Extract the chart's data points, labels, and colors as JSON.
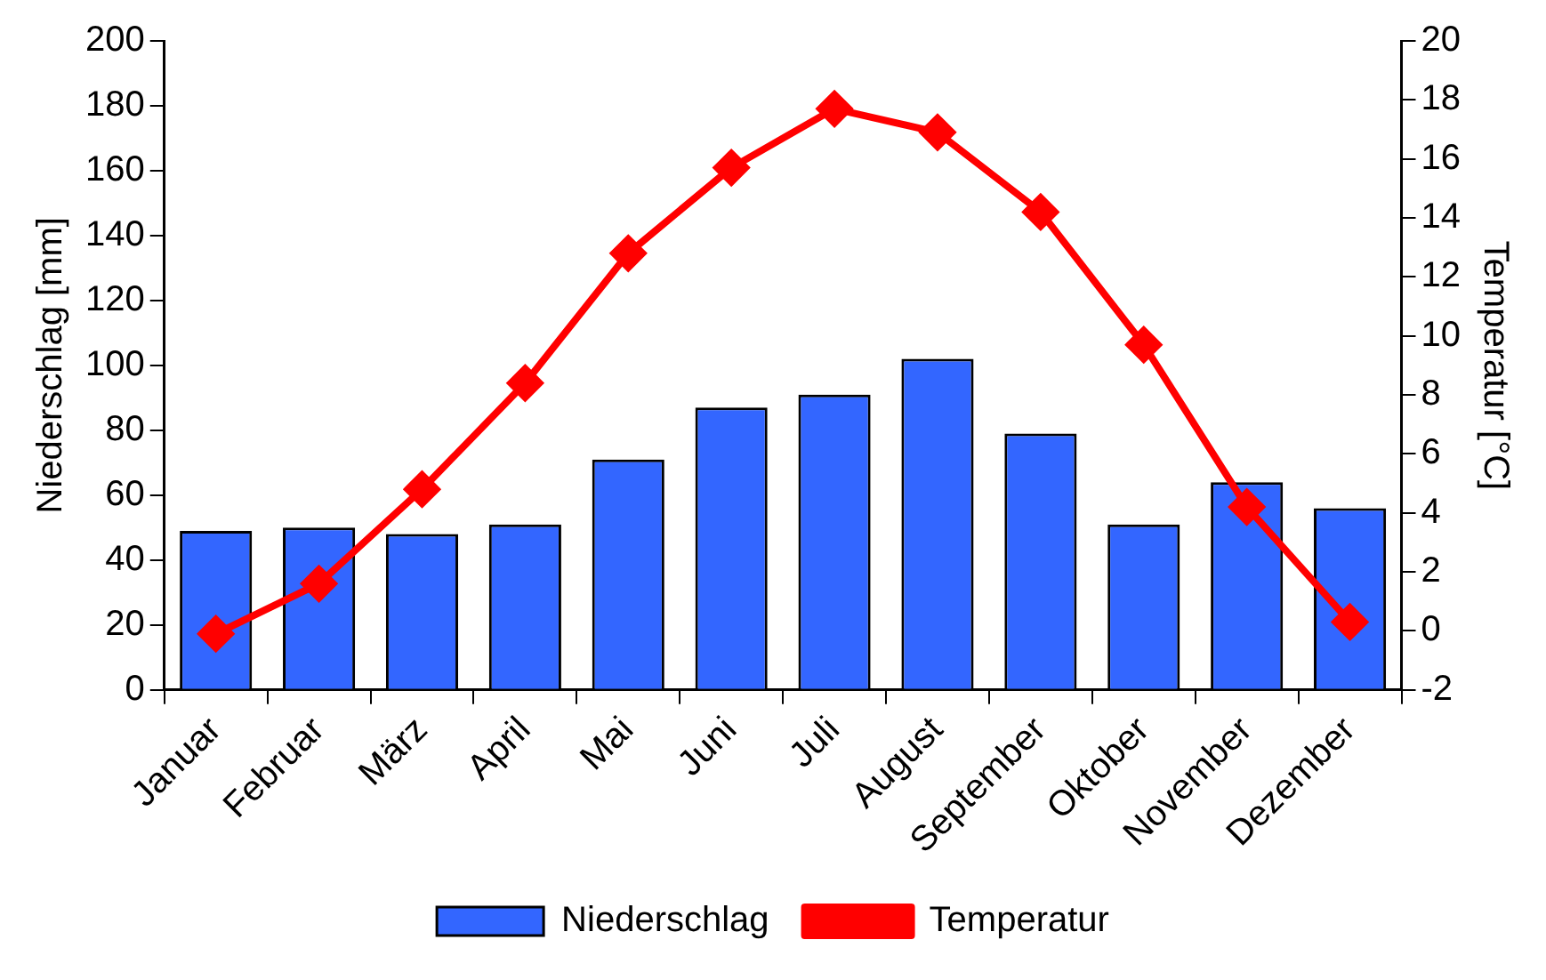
{
  "chart_data": {
    "type": "bar",
    "categories": [
      "Januar",
      "Februar",
      "März",
      "April",
      "Mai",
      "Juni",
      "Juli",
      "August",
      "September",
      "Oktober",
      "November",
      "Dezember"
    ],
    "ylabel": "Niederschlag [mm]",
    "y2label": "Temperatur [°C]",
    "series": [
      {
        "name": "Niederschlag",
        "color": "#3366ff",
        "values": [
          49,
          50,
          48,
          51,
          71,
          87,
          91,
          102,
          79,
          51,
          64,
          56
        ]
      },
      {
        "name": "Temperatur",
        "type": "line",
        "axis": "y2",
        "color": "#ff0000",
        "marker": "diamond",
        "values": [
          -0.1,
          1.6,
          4.8,
          8.4,
          12.8,
          15.7,
          17.7,
          16.9,
          14.2,
          9.7,
          4.2,
          0.3
        ]
      }
    ],
    "ylim": [
      0,
      200
    ],
    "yticks": [
      0,
      20,
      40,
      60,
      80,
      100,
      120,
      140,
      160,
      180,
      200
    ],
    "y2lim": [
      -2,
      20
    ],
    "y2ticks": [
      -2,
      0,
      2,
      4,
      6,
      8,
      10,
      12,
      14,
      16,
      18,
      20
    ],
    "grid": false,
    "legend": "bottom"
  }
}
